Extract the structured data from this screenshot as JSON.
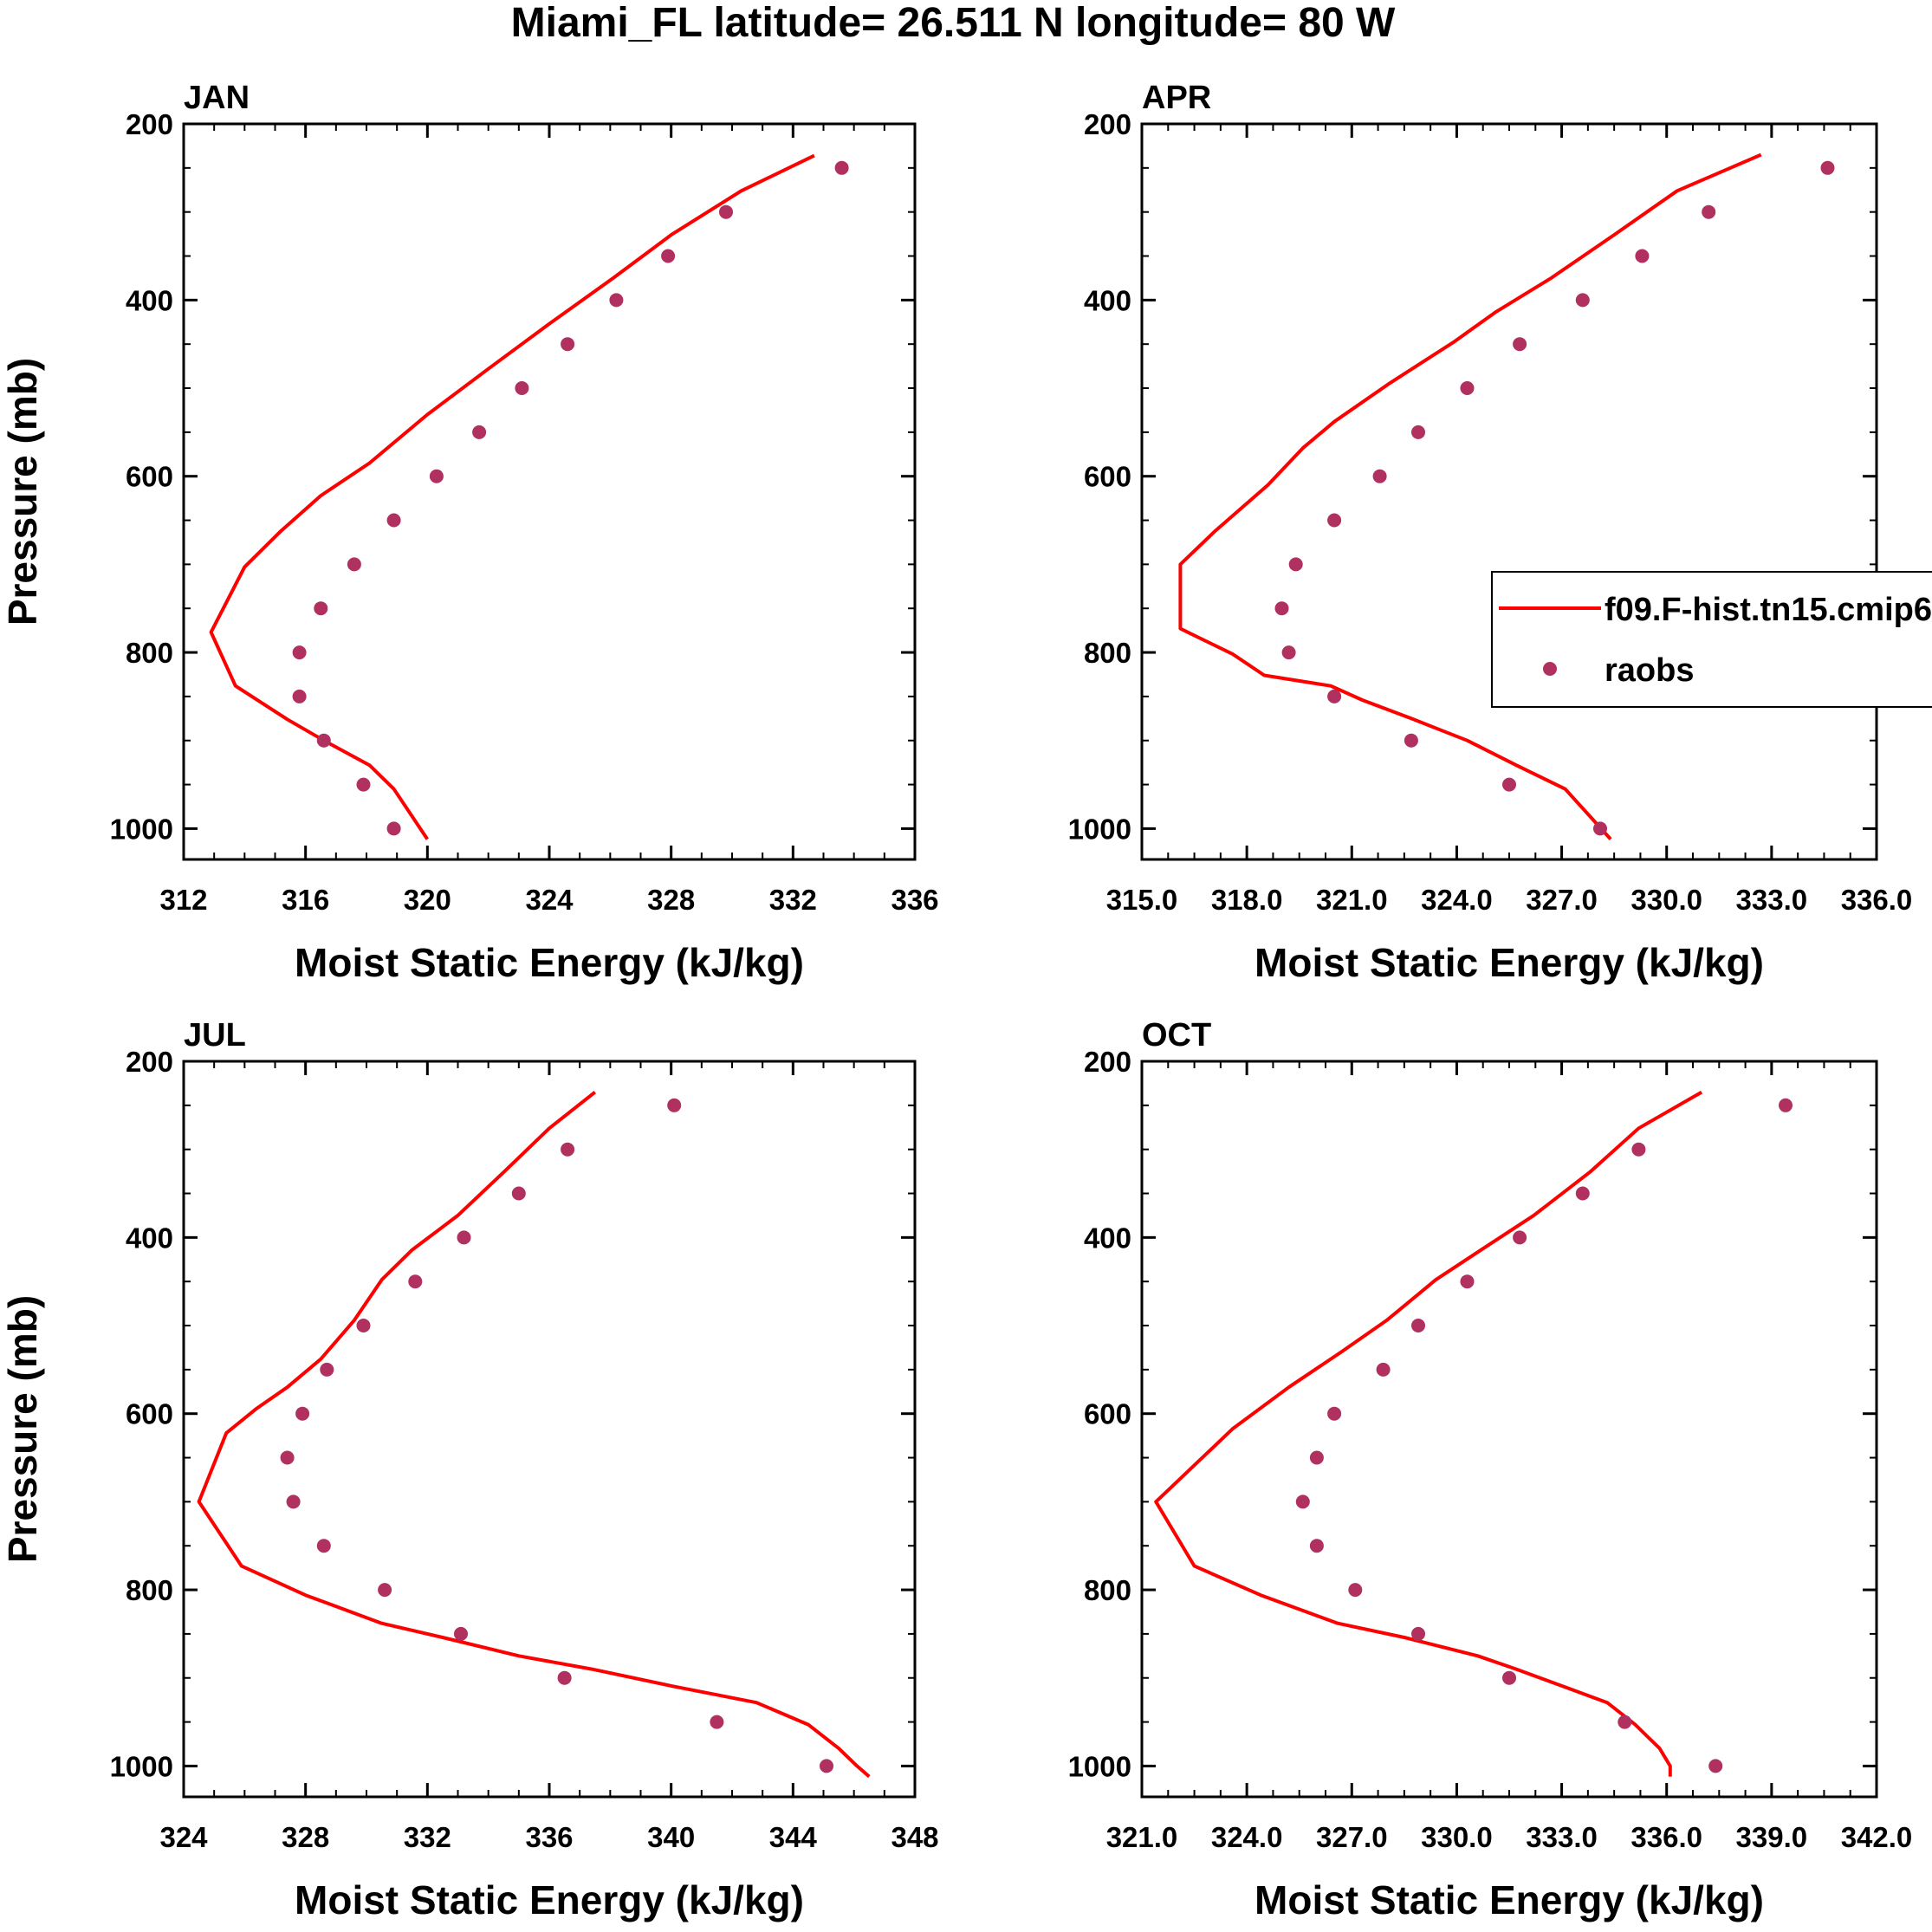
{
  "figure": {
    "title": "Miami_FL  latitude= 26.511 N longitude= 80 W"
  },
  "legend": {
    "entries": [
      {
        "label": "f09.F-hist.tn15.cmip6",
        "style": "line",
        "color": "#ff0000"
      },
      {
        "label": "raobs",
        "style": "marker",
        "color": "#b03060"
      }
    ],
    "placement": "right of APR panel, clipped at figure edge"
  },
  "chart_data": [
    {
      "type": "line",
      "panel": "JAN",
      "title": "JAN",
      "xlabel": "Moist Static Energy (kJ/kg)",
      "ylabel": "Pressure (mb)",
      "xlim": [
        312,
        336
      ],
      "ylim": [
        200,
        1035
      ],
      "y_reversed": true,
      "x_ticks": [
        "312",
        "316",
        "320",
        "324",
        "328",
        "332",
        "336"
      ],
      "y_ticks": [
        "200",
        "400",
        "600",
        "800",
        "1000"
      ],
      "series": [
        {
          "name": "f09.F-hist.tn15.cmip6",
          "kind": "line",
          "color": "#ff0000",
          "points": [
            [
              332.7,
              236
            ],
            [
              330.3,
              276
            ],
            [
              328,
              326
            ],
            [
              326.1,
              375
            ],
            [
              324,
              427
            ],
            [
              322,
              478
            ],
            [
              320,
              530
            ],
            [
              318.1,
              585
            ],
            [
              316.5,
              622
            ],
            [
              315.2,
              662
            ],
            [
              314,
              703
            ],
            [
              312.9,
              777
            ],
            [
              313.7,
              838
            ],
            [
              315.4,
              876
            ],
            [
              316.6,
              900
            ],
            [
              318.1,
              928
            ],
            [
              318.9,
              955
            ],
            [
              320,
              1012
            ]
          ]
        },
        {
          "name": "raobs",
          "kind": "scatter",
          "color": "#b03060",
          "points": [
            [
              333.6,
              250
            ],
            [
              329.8,
              300
            ],
            [
              327.9,
              350
            ],
            [
              326.2,
              400
            ],
            [
              324.6,
              450
            ],
            [
              323.1,
              500
            ],
            [
              321.7,
              550
            ],
            [
              320.3,
              600
            ],
            [
              318.9,
              650
            ],
            [
              317.6,
              700
            ],
            [
              316.5,
              750
            ],
            [
              315.8,
              800
            ],
            [
              315.8,
              850
            ],
            [
              316.6,
              900
            ],
            [
              317.9,
              950
            ],
            [
              318.9,
              1000
            ]
          ]
        }
      ]
    },
    {
      "type": "line",
      "panel": "APR",
      "title": "APR",
      "xlabel": "Moist Static Energy (kJ/kg)",
      "ylabel": "",
      "xlim": [
        315,
        336
      ],
      "ylim": [
        200,
        1035
      ],
      "y_reversed": true,
      "x_ticks": [
        "315.0",
        "318.0",
        "321.0",
        "324.0",
        "327.0",
        "330.0",
        "333.0",
        "336.0"
      ],
      "y_ticks": [
        "200",
        "400",
        "600",
        "800",
        "1000"
      ],
      "series": [
        {
          "name": "f09.F-hist.tn15.cmip6",
          "kind": "line",
          "color": "#ff0000",
          "points": [
            [
              332.7,
              235
            ],
            [
              330.3,
              276
            ],
            [
              328.5,
              326
            ],
            [
              326.7,
              375
            ],
            [
              325.1,
              414
            ],
            [
              323.9,
              448
            ],
            [
              322.1,
              494
            ],
            [
              320.5,
              538
            ],
            [
              319.6,
              568
            ],
            [
              318.6,
              610
            ],
            [
              317.1,
              662
            ],
            [
              316.1,
              700
            ],
            [
              316.1,
              773
            ],
            [
              317.6,
              802
            ],
            [
              318.5,
              826
            ],
            [
              320.4,
              838
            ],
            [
              321.3,
              854
            ],
            [
              322.7,
              875
            ],
            [
              324.3,
              900
            ],
            [
              325.7,
              928
            ],
            [
              327.1,
              955
            ],
            [
              328.4,
              1012
            ]
          ]
        },
        {
          "name": "raobs",
          "kind": "scatter",
          "color": "#b03060",
          "points": [
            [
              334.6,
              250
            ],
            [
              331.2,
              300
            ],
            [
              329.3,
              350
            ],
            [
              327.6,
              400
            ],
            [
              325.8,
              450
            ],
            [
              324.3,
              500
            ],
            [
              322.9,
              550
            ],
            [
              321.8,
              600
            ],
            [
              320.5,
              650
            ],
            [
              319.4,
              700
            ],
            [
              319,
              750
            ],
            [
              319.2,
              800
            ],
            [
              320.5,
              850
            ],
            [
              322.7,
              900
            ],
            [
              325.5,
              950
            ],
            [
              328.1,
              1000
            ]
          ]
        }
      ]
    },
    {
      "type": "line",
      "panel": "JUL",
      "title": "JUL",
      "xlabel": "Moist Static Energy (kJ/kg)",
      "ylabel": "Pressure (mb)",
      "xlim": [
        324,
        348
      ],
      "ylim": [
        200,
        1035
      ],
      "y_reversed": true,
      "x_ticks": [
        "324",
        "328",
        "332",
        "336",
        "340",
        "344",
        "348"
      ],
      "y_ticks": [
        "200",
        "400",
        "600",
        "800",
        "1000"
      ],
      "series": [
        {
          "name": "f09.F-hist.tn15.cmip6",
          "kind": "line",
          "color": "#ff0000",
          "points": [
            [
              337.5,
              235
            ],
            [
              336,
              276
            ],
            [
              334.5,
              326
            ],
            [
              333,
              375
            ],
            [
              331.5,
              414
            ],
            [
              330.5,
              448
            ],
            [
              329.6,
              494
            ],
            [
              328.5,
              538
            ],
            [
              327.4,
              570
            ],
            [
              326.4,
              594
            ],
            [
              325.4,
              622
            ],
            [
              324.5,
              700
            ],
            [
              325.9,
              773
            ],
            [
              328,
              806
            ],
            [
              330.5,
              838
            ],
            [
              332.5,
              854
            ],
            [
              335,
              875
            ],
            [
              337.4,
              890
            ],
            [
              340,
              909
            ],
            [
              342.8,
              928
            ],
            [
              344.5,
              953
            ],
            [
              345.5,
              980
            ],
            [
              346.1,
              1000
            ],
            [
              346.5,
              1012
            ]
          ]
        },
        {
          "name": "raobs",
          "kind": "scatter",
          "color": "#b03060",
          "points": [
            [
              340.1,
              250
            ],
            [
              336.6,
              300
            ],
            [
              335,
              350
            ],
            [
              333.2,
              400
            ],
            [
              331.6,
              450
            ],
            [
              329.9,
              500
            ],
            [
              328.7,
              550
            ],
            [
              327.9,
              600
            ],
            [
              327.4,
              650
            ],
            [
              327.6,
              700
            ],
            [
              328.6,
              750
            ],
            [
              330.6,
              800
            ],
            [
              333.1,
              850
            ],
            [
              336.5,
              900
            ],
            [
              341.5,
              950
            ],
            [
              345.1,
              1000
            ]
          ]
        }
      ]
    },
    {
      "type": "line",
      "panel": "OCT",
      "title": "OCT",
      "xlabel": "Moist Static Energy (kJ/kg)",
      "ylabel": "",
      "xlim": [
        321,
        342
      ],
      "ylim": [
        200,
        1035
      ],
      "y_reversed": true,
      "x_ticks": [
        "321.0",
        "324.0",
        "327.0",
        "330.0",
        "333.0",
        "336.0",
        "339.0",
        "342.0"
      ],
      "y_ticks": [
        "200",
        "400",
        "600",
        "800",
        "1000"
      ],
      "series": [
        {
          "name": "f09.F-hist.tn15.cmip6",
          "kind": "line",
          "color": "#ff0000",
          "points": [
            [
              337,
              235
            ],
            [
              335.2,
              276
            ],
            [
              333.8,
              326
            ],
            [
              332.2,
              375
            ],
            [
              330.7,
              414
            ],
            [
              329.4,
              448
            ],
            [
              328,
              494
            ],
            [
              326.7,
              530
            ],
            [
              325.2,
              570
            ],
            [
              323.6,
              617
            ],
            [
              321.4,
              700
            ],
            [
              322.5,
              773
            ],
            [
              324.4,
              806
            ],
            [
              326.6,
              838
            ],
            [
              328.5,
              854
            ],
            [
              330.6,
              875
            ],
            [
              331.7,
              890
            ],
            [
              333,
              909
            ],
            [
              334.3,
              928
            ],
            [
              335.1,
              953
            ],
            [
              335.8,
              980
            ],
            [
              336.1,
              1000
            ],
            [
              336.1,
              1012
            ]
          ]
        },
        {
          "name": "raobs",
          "kind": "scatter",
          "color": "#b03060",
          "points": [
            [
              339.4,
              250
            ],
            [
              335.2,
              300
            ],
            [
              333.6,
              350
            ],
            [
              331.8,
              400
            ],
            [
              330.3,
              450
            ],
            [
              328.9,
              500
            ],
            [
              327.9,
              550
            ],
            [
              326.5,
              600
            ],
            [
              326,
              650
            ],
            [
              325.6,
              700
            ],
            [
              326,
              750
            ],
            [
              327.1,
              800
            ],
            [
              328.9,
              850
            ],
            [
              331.5,
              900
            ],
            [
              334.8,
              950
            ],
            [
              337.4,
              1000
            ]
          ]
        }
      ]
    }
  ]
}
